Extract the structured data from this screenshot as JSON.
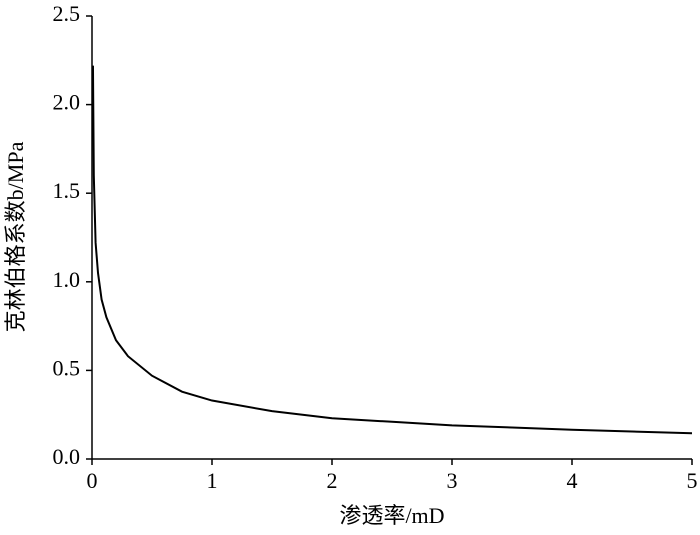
{
  "chart_data": {
    "type": "line",
    "x_label": "渗透率/mD",
    "y_label": "克林伯格系数b/MPa",
    "x": [
      0.008,
      0.015,
      0.03,
      0.05,
      0.08,
      0.12,
      0.2,
      0.3,
      0.5,
      0.75,
      1,
      1.5,
      2,
      2.5,
      3,
      3.5,
      4,
      4.5,
      5
    ],
    "series": [
      {
        "color": "#000000",
        "values": [
          2.22,
          1.6,
          1.22,
          1.05,
          0.9,
          0.8,
          0.67,
          0.58,
          0.47,
          0.38,
          0.33,
          0.27,
          0.23,
          0.21,
          0.19,
          0.178,
          0.165,
          0.155,
          0.145
        ]
      }
    ],
    "xlim": [
      0,
      5
    ],
    "xticks": [
      0,
      1,
      2,
      3,
      4,
      5
    ],
    "ylim": [
      0,
      2.5
    ],
    "yticks": [
      {
        "value": 0,
        "label": "0.0"
      },
      0.5,
      {
        "value": 1,
        "label": "1.0"
      },
      1.5,
      {
        "value": 2,
        "label": "2.0"
      },
      2.5
    ]
  }
}
